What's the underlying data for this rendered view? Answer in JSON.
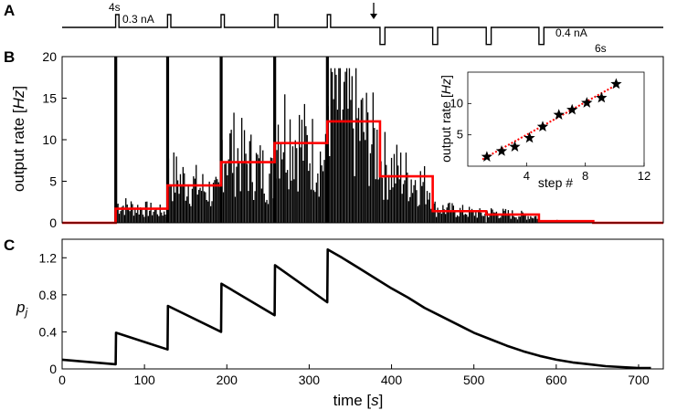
{
  "panels": {
    "a": {
      "letter": "A",
      "label_4s": "4s",
      "label_03nA": "0.3 nA",
      "label_04nA": "0.4 nA",
      "label_6s": "6s"
    },
    "b": {
      "letter": "B"
    },
    "c": {
      "letter": "C"
    }
  },
  "chart_data": [
    {
      "type": "line",
      "panel": "A",
      "description_free": true,
      "series": [
        {
          "name": "",
          "pulses": [
            {
              "start": 65,
              "duration": 4,
              "amplitude": 0.3
            },
            {
              "start": 128,
              "duration": 4,
              "amplitude": 0.3
            },
            {
              "start": 193,
              "duration": 4,
              "amplitude": 0.3
            },
            {
              "start": 258,
              "duration": 4,
              "amplitude": 0.3
            },
            {
              "start": 322,
              "duration": 4,
              "amplitude": 0.3
            },
            {
              "start": 386,
              "duration": 6,
              "amplitude": -0.4
            },
            {
              "start": 450,
              "duration": 6,
              "amplitude": -0.4
            },
            {
              "start": 515,
              "duration": 6,
              "amplitude": -0.4
            },
            {
              "start": 579,
              "duration": 6,
              "amplitude": -0.4
            }
          ]
        }
      ],
      "xlim": [
        0,
        730
      ]
    },
    {
      "type": "bar",
      "panel": "B",
      "ylabel": "output rate [",
      "ylabel_italic": "Hz",
      "ylabel_end": "]",
      "xlim": [
        0,
        730
      ],
      "ylim": [
        0,
        20
      ],
      "yticks": [
        "0",
        "5",
        "10",
        "15",
        "20"
      ],
      "histogram_color": "#000000",
      "step_color": "#ff0000",
      "spikes": [
        {
          "x": 65,
          "y": 20
        },
        {
          "x": 128,
          "y": 20
        },
        {
          "x": 193,
          "y": 20
        },
        {
          "x": 258,
          "y": 20
        },
        {
          "x": 322,
          "y": 20
        }
      ],
      "step_series": {
        "name": "",
        "segments": [
          {
            "x0": 0,
            "x1": 65,
            "y": 0
          },
          {
            "x0": 65,
            "x1": 128,
            "y": 1.7
          },
          {
            "x0": 128,
            "x1": 193,
            "y": 4.5
          },
          {
            "x0": 193,
            "x1": 258,
            "y": 7.3
          },
          {
            "x0": 258,
            "x1": 322,
            "y": 9.6
          },
          {
            "x0": 322,
            "x1": 386,
            "y": 12.2
          },
          {
            "x0": 386,
            "x1": 450,
            "y": 5.6
          },
          {
            "x0": 450,
            "x1": 515,
            "y": 1.4
          },
          {
            "x0": 515,
            "x1": 579,
            "y": 1.0
          },
          {
            "x0": 579,
            "x1": 645,
            "y": 0.2
          },
          {
            "x0": 645,
            "x1": 730,
            "y": 0
          }
        ]
      },
      "inset": {
        "type": "scatter",
        "xlabel": "step #",
        "ylabel": "output rate [",
        "ylabel_italic": "Hz",
        "ylabel_end": "]",
        "xlim": [
          0,
          12
        ],
        "ylim": [
          0,
          15
        ],
        "xticks": [
          "4",
          "8",
          "12"
        ],
        "yticks": [
          "5",
          "10"
        ],
        "marker_color": "#000000",
        "fit_color": "#ff0000",
        "x": [
          1.3,
          2.3,
          3.2,
          4.2,
          5.1,
          6.2,
          7.1,
          8.1,
          9.1,
          10.1
        ],
        "y": [
          1.5,
          2.4,
          3.1,
          4.5,
          6.3,
          8.2,
          9.0,
          10.1,
          10.9,
          13.1
        ],
        "fit": {
          "x": [
            1.0,
            10.3
          ],
          "y": [
            1.1,
            13.2
          ]
        }
      }
    },
    {
      "type": "line",
      "panel": "C",
      "xlabel": "time [",
      "xlabel_italic": "s",
      "xlabel_end": "]",
      "ylabel": "p",
      "ylabel_sub": "j",
      "xlim": [
        0,
        730
      ],
      "ylim": [
        0,
        1.4
      ],
      "xticks": [
        "0",
        "100",
        "200",
        "300",
        "400",
        "500",
        "600",
        "700"
      ],
      "yticks": [
        "0",
        "0.4",
        "0.8",
        "1.2"
      ],
      "line_color": "#000000",
      "series": [
        {
          "name": "",
          "x": [
            0,
            65,
            65.5,
            128,
            128.5,
            193,
            193.5,
            258,
            258.5,
            322,
            322.5,
            340,
            360,
            380,
            400,
            420,
            440,
            460,
            480,
            500,
            520,
            540,
            560,
            580,
            600,
            620,
            640,
            660,
            680,
            700,
            715
          ],
          "y": [
            0.1,
            0.05,
            0.39,
            0.21,
            0.68,
            0.4,
            0.92,
            0.58,
            1.12,
            0.72,
            1.29,
            1.2,
            1.09,
            0.98,
            0.87,
            0.77,
            0.66,
            0.57,
            0.48,
            0.39,
            0.32,
            0.25,
            0.19,
            0.14,
            0.1,
            0.07,
            0.05,
            0.03,
            0.02,
            0.01,
            0.01
          ]
        }
      ]
    }
  ]
}
